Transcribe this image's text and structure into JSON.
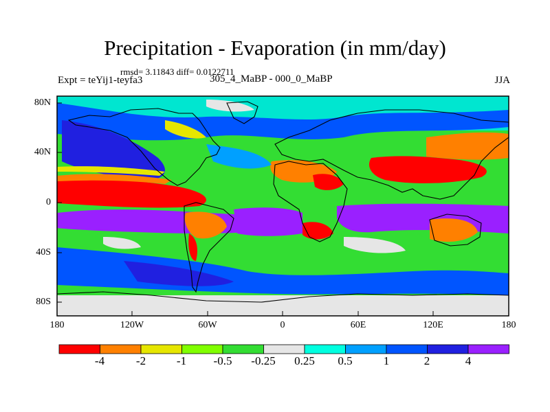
{
  "title": "Precipitation - Evaporation (in mm/day)",
  "stats": "rmsd= 3.11843 diff= 0.0122711",
  "experiment": "Expt = teYij1-teyfa3",
  "case_id": "305_4_MaBP - 000_0_MaBP",
  "season": "JJA",
  "map": {
    "lat_labels": [
      "80N",
      "40N",
      "0",
      "40S",
      "80S"
    ],
    "lon_labels": [
      "180",
      "120W",
      "60W",
      "0",
      "60E",
      "120E",
      "180"
    ]
  },
  "colorbar": {
    "colors": [
      "#ff0000",
      "#ff8000",
      "#e6e600",
      "#80ff00",
      "#33dd33",
      "#e6e6e6",
      "#00ffe0",
      "#00a0ff",
      "#0055ff",
      "#2020e0",
      "#9a20ff"
    ],
    "labels": [
      "-4",
      "-2",
      "-1",
      "-0.5",
      "-0.25",
      "0.25",
      "0.5",
      "1",
      "2",
      "4"
    ]
  }
}
